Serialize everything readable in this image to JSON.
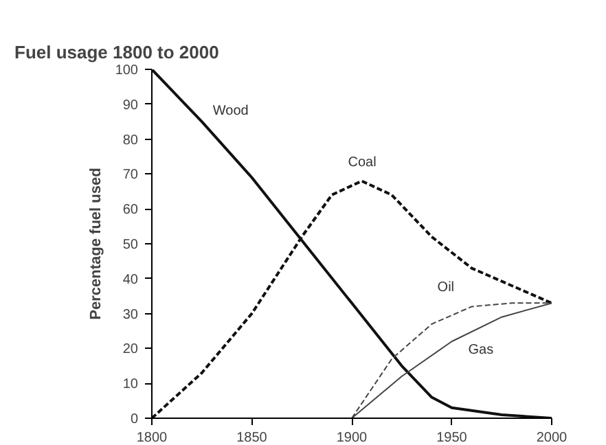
{
  "chart_data": {
    "type": "line",
    "title": "Fuel usage 1800 to 2000",
    "ylabel": "Percentage fuel used",
    "xlim": [
      1800,
      2000
    ],
    "xticks": [
      1800,
      1850,
      1900,
      1950,
      2000
    ],
    "ylim": [
      0,
      100
    ],
    "yticks": [
      0,
      10,
      20,
      30,
      40,
      50,
      60,
      70,
      80,
      90,
      100
    ],
    "grid": false,
    "marker": "none",
    "series": [
      {
        "name": "Wood",
        "color": "#111111",
        "line_style": "solid",
        "x": [
          1800,
          1825,
          1850,
          1875,
          1900,
          1925,
          1940,
          1950,
          1975,
          2000
        ],
        "values": [
          100,
          85,
          69,
          51,
          33,
          15,
          6,
          3,
          1,
          0
        ]
      },
      {
        "name": "Coal",
        "color": "#111111",
        "line_style": "dashed",
        "x": [
          1800,
          1825,
          1850,
          1875,
          1890,
          1905,
          1920,
          1940,
          1960,
          1980,
          2000
        ],
        "values": [
          0,
          13,
          30,
          52,
          64,
          68,
          64,
          52,
          43,
          38,
          33
        ]
      },
      {
        "name": "Oil",
        "color": "#444444",
        "line_style": "dashed",
        "x": [
          1900,
          1920,
          1940,
          1960,
          1980,
          2000
        ],
        "values": [
          0,
          17,
          27,
          32,
          33,
          33
        ]
      },
      {
        "name": "Gas",
        "color": "#444444",
        "line_style": "solid",
        "x": [
          1900,
          1925,
          1950,
          1975,
          2000
        ],
        "values": [
          0,
          12,
          22,
          29,
          33
        ]
      }
    ]
  }
}
